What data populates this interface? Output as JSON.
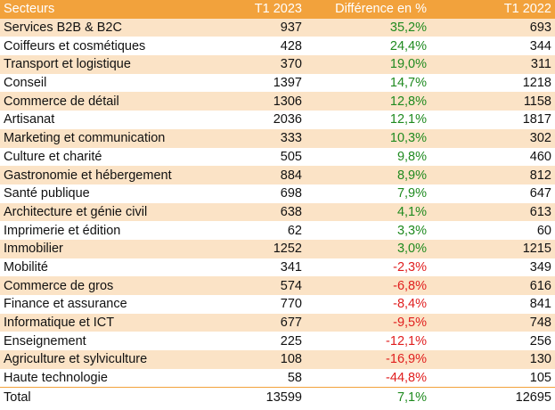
{
  "colors": {
    "header_bg": "#f2a23c",
    "band": "#fbe3c6",
    "positive": "#1f8a1f",
    "negative": "#e01e1e"
  },
  "header": {
    "sector": "Secteurs",
    "t1_2023": "T1 2023",
    "diff": "Différence en %",
    "t1_2022": "T1 2022"
  },
  "rows": [
    {
      "sector": "Services B2B & B2C",
      "t1_2023": "937",
      "diff": "35,2%",
      "t1_2022": "693",
      "sign": "pos"
    },
    {
      "sector": "Coiffeurs et cosmétiques",
      "t1_2023": "428",
      "diff": "24,4%",
      "t1_2022": "344",
      "sign": "pos"
    },
    {
      "sector": "Transport et logistique",
      "t1_2023": "370",
      "diff": "19,0%",
      "t1_2022": "311",
      "sign": "pos"
    },
    {
      "sector": "Conseil",
      "t1_2023": "1397",
      "diff": "14,7%",
      "t1_2022": "1218",
      "sign": "pos"
    },
    {
      "sector": "Commerce de détail",
      "t1_2023": "1306",
      "diff": "12,8%",
      "t1_2022": "1158",
      "sign": "pos"
    },
    {
      "sector": "Artisanat",
      "t1_2023": "2036",
      "diff": "12,1%",
      "t1_2022": "1817",
      "sign": "pos"
    },
    {
      "sector": "Marketing et communication",
      "t1_2023": "333",
      "diff": "10,3%",
      "t1_2022": "302",
      "sign": "pos"
    },
    {
      "sector": "Culture et charité",
      "t1_2023": "505",
      "diff": "9,8%",
      "t1_2022": "460",
      "sign": "pos"
    },
    {
      "sector": "Gastronomie et hébergement",
      "t1_2023": "884",
      "diff": "8,9%",
      "t1_2022": "812",
      "sign": "pos"
    },
    {
      "sector": "Santé publique",
      "t1_2023": "698",
      "diff": "7,9%",
      "t1_2022": "647",
      "sign": "pos"
    },
    {
      "sector": "Architecture et génie civil",
      "t1_2023": "638",
      "diff": "4,1%",
      "t1_2022": "613",
      "sign": "pos"
    },
    {
      "sector": "Imprimerie et édition",
      "t1_2023": "62",
      "diff": "3,3%",
      "t1_2022": "60",
      "sign": "pos"
    },
    {
      "sector": "Immobilier",
      "t1_2023": "1252",
      "diff": "3,0%",
      "t1_2022": "1215",
      "sign": "pos"
    },
    {
      "sector": "Mobilité",
      "t1_2023": "341",
      "diff": "-2,3%",
      "t1_2022": "349",
      "sign": "neg"
    },
    {
      "sector": "Commerce de gros",
      "t1_2023": "574",
      "diff": "-6,8%",
      "t1_2022": "616",
      "sign": "neg"
    },
    {
      "sector": "Finance et assurance",
      "t1_2023": "770",
      "diff": "-8,4%",
      "t1_2022": "841",
      "sign": "neg"
    },
    {
      "sector": "Informatique et ICT",
      "t1_2023": "677",
      "diff": "-9,5%",
      "t1_2022": "748",
      "sign": "neg"
    },
    {
      "sector": "Enseignement",
      "t1_2023": "225",
      "diff": "-12,1%",
      "t1_2022": "256",
      "sign": "neg"
    },
    {
      "sector": "Agriculture et sylviculture",
      "t1_2023": "108",
      "diff": "-16,9%",
      "t1_2022": "130",
      "sign": "neg"
    },
    {
      "sector": "Haute technologie",
      "t1_2023": "58",
      "diff": "-44,8%",
      "t1_2022": "105",
      "sign": "neg"
    }
  ],
  "total": {
    "sector": "Total",
    "t1_2023": "13599",
    "diff": "7,1%",
    "t1_2022": "12695",
    "sign": "pos"
  }
}
